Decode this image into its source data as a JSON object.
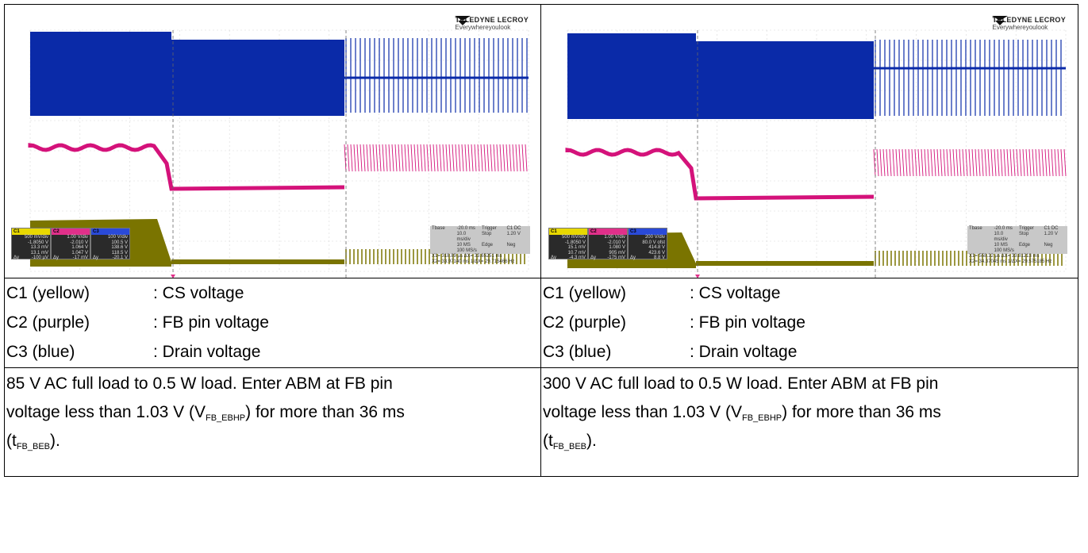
{
  "left": {
    "scope": {
      "brand": "TELEDYNE LECROY",
      "tagline": "Everywhereyoulook",
      "channels": [
        {
          "name": "C1",
          "rows": [
            [
              "",
              "500 mV/div"
            ],
            [
              "",
              "-1.8050 V"
            ],
            [
              "",
              "13.3 mV"
            ],
            [
              "",
              "13.1 mV"
            ],
            [
              "Δy",
              "-100 µV"
            ]
          ]
        },
        {
          "name": "C2",
          "rows": [
            [
              "",
              "1.00 V/div"
            ],
            [
              "",
              "-2.010 V"
            ],
            [
              "",
              "1.064 V"
            ],
            [
              "",
              "1.047 V"
            ],
            [
              "Δy",
              "-17 mV"
            ]
          ]
        },
        {
          "name": "C3",
          "rows": [
            [
              "",
              "100 V/div"
            ],
            [
              "",
              "100.5 V"
            ],
            [
              "",
              "138.6 V"
            ],
            [
              "",
              "118.5 V"
            ],
            [
              "Δy",
              "-20.1 V"
            ]
          ]
        }
      ],
      "timebase": {
        "tbase_label": "Tbase",
        "tbase_value": "-20.0 ms",
        "trigger_label": "Trigger",
        "trigger_value": "C1 DC",
        "div_value": "10.0 ms/div",
        "stop_label": "Stop",
        "stop_value": "1.20 V",
        "sample_value": "10 MS    100 MS/s",
        "edge_label": "Edge",
        "edge_value": "Neg",
        "x1": "X1=    318.89 µs    ΔX=  33.65251 ms",
        "x2": "X2= 33.97140 ms  1/ΔX=  29.715466 Hz"
      }
    },
    "legend": [
      {
        "channel": "C1 (yellow)",
        "desc": ": CS voltage"
      },
      {
        "channel": "C2 (purple)",
        "desc": ": FB pin voltage"
      },
      {
        "channel": "C3 (blue)",
        "desc": ": Drain voltage"
      }
    ],
    "caption": {
      "line1": "85 V AC full load to 0.5 W load. Enter ABM at FB pin",
      "line2a": "voltage less than 1.03 V (V",
      "line2sub": "FB_EBHP",
      "line2b": ") for more than 36 ms",
      "line3a": "(t",
      "line3sub": "FB_BEB",
      "line3b": ")."
    }
  },
  "right": {
    "scope": {
      "brand": "TELEDYNE LECROY",
      "tagline": "Everywhereyoulook",
      "channels": [
        {
          "name": "C1",
          "rows": [
            [
              "",
              "500 mV/div"
            ],
            [
              "",
              "-1.8050 V"
            ],
            [
              "",
              "15.1 mV"
            ],
            [
              "",
              "10.7 mV"
            ],
            [
              "Δy",
              "-4.3 mV"
            ]
          ]
        },
        {
          "name": "C2",
          "rows": [
            [
              "",
              "1.00 V/div"
            ],
            [
              "",
              "-2.010 V"
            ],
            [
              "",
              "1.080 V"
            ],
            [
              "",
              "905 mV"
            ],
            [
              "Δy",
              "-175 mV"
            ]
          ]
        },
        {
          "name": "C3",
          "rows": [
            [
              "",
              "200 V/div"
            ],
            [
              "",
              "80.0 V ofst"
            ],
            [
              "",
              "414.8 V"
            ],
            [
              "",
              "423.6 V"
            ],
            [
              "Δy",
              "8.8 V"
            ]
          ]
        }
      ],
      "timebase": {
        "tbase_label": "Tbase",
        "tbase_value": "-20.0 ms",
        "trigger_label": "Trigger",
        "trigger_value": "C1 DC",
        "div_value": "10.0 ms/div",
        "stop_label": "Stop",
        "stop_value": "1.20 V",
        "sample_value": "10 MS    100 MS/s",
        "edge_label": "Edge",
        "edge_value": "Neg",
        "x1": "X1=    558.32 µs    ΔX=  33.81213 ms",
        "x2": "X2= 34.37045 ms  1/ΔX=  29.575185 Hz"
      }
    },
    "legend": [
      {
        "channel": "C1 (yellow)",
        "desc": ": CS voltage"
      },
      {
        "channel": "C2 (purple)",
        "desc": ": FB pin voltage"
      },
      {
        "channel": "C3 (blue)",
        "desc": ": Drain voltage"
      }
    ],
    "caption": {
      "line1": "300 V AC full load to 0.5 W load. Enter ABM at FB pin",
      "line2a": "voltage less than 1.03 V (V",
      "line2sub": "FB_EBHP",
      "line2b": ") for more than 36 ms",
      "line3a": "(t",
      "line3sub": "FB_BEB",
      "line3b": ")."
    }
  },
  "colors": {
    "c1": "#7a7400",
    "c2": "#d4127a",
    "c3": "#0a2aa8",
    "c1_header": "#e8d800",
    "c2_header": "#e0308a",
    "c3_header": "#2a4ad8"
  }
}
